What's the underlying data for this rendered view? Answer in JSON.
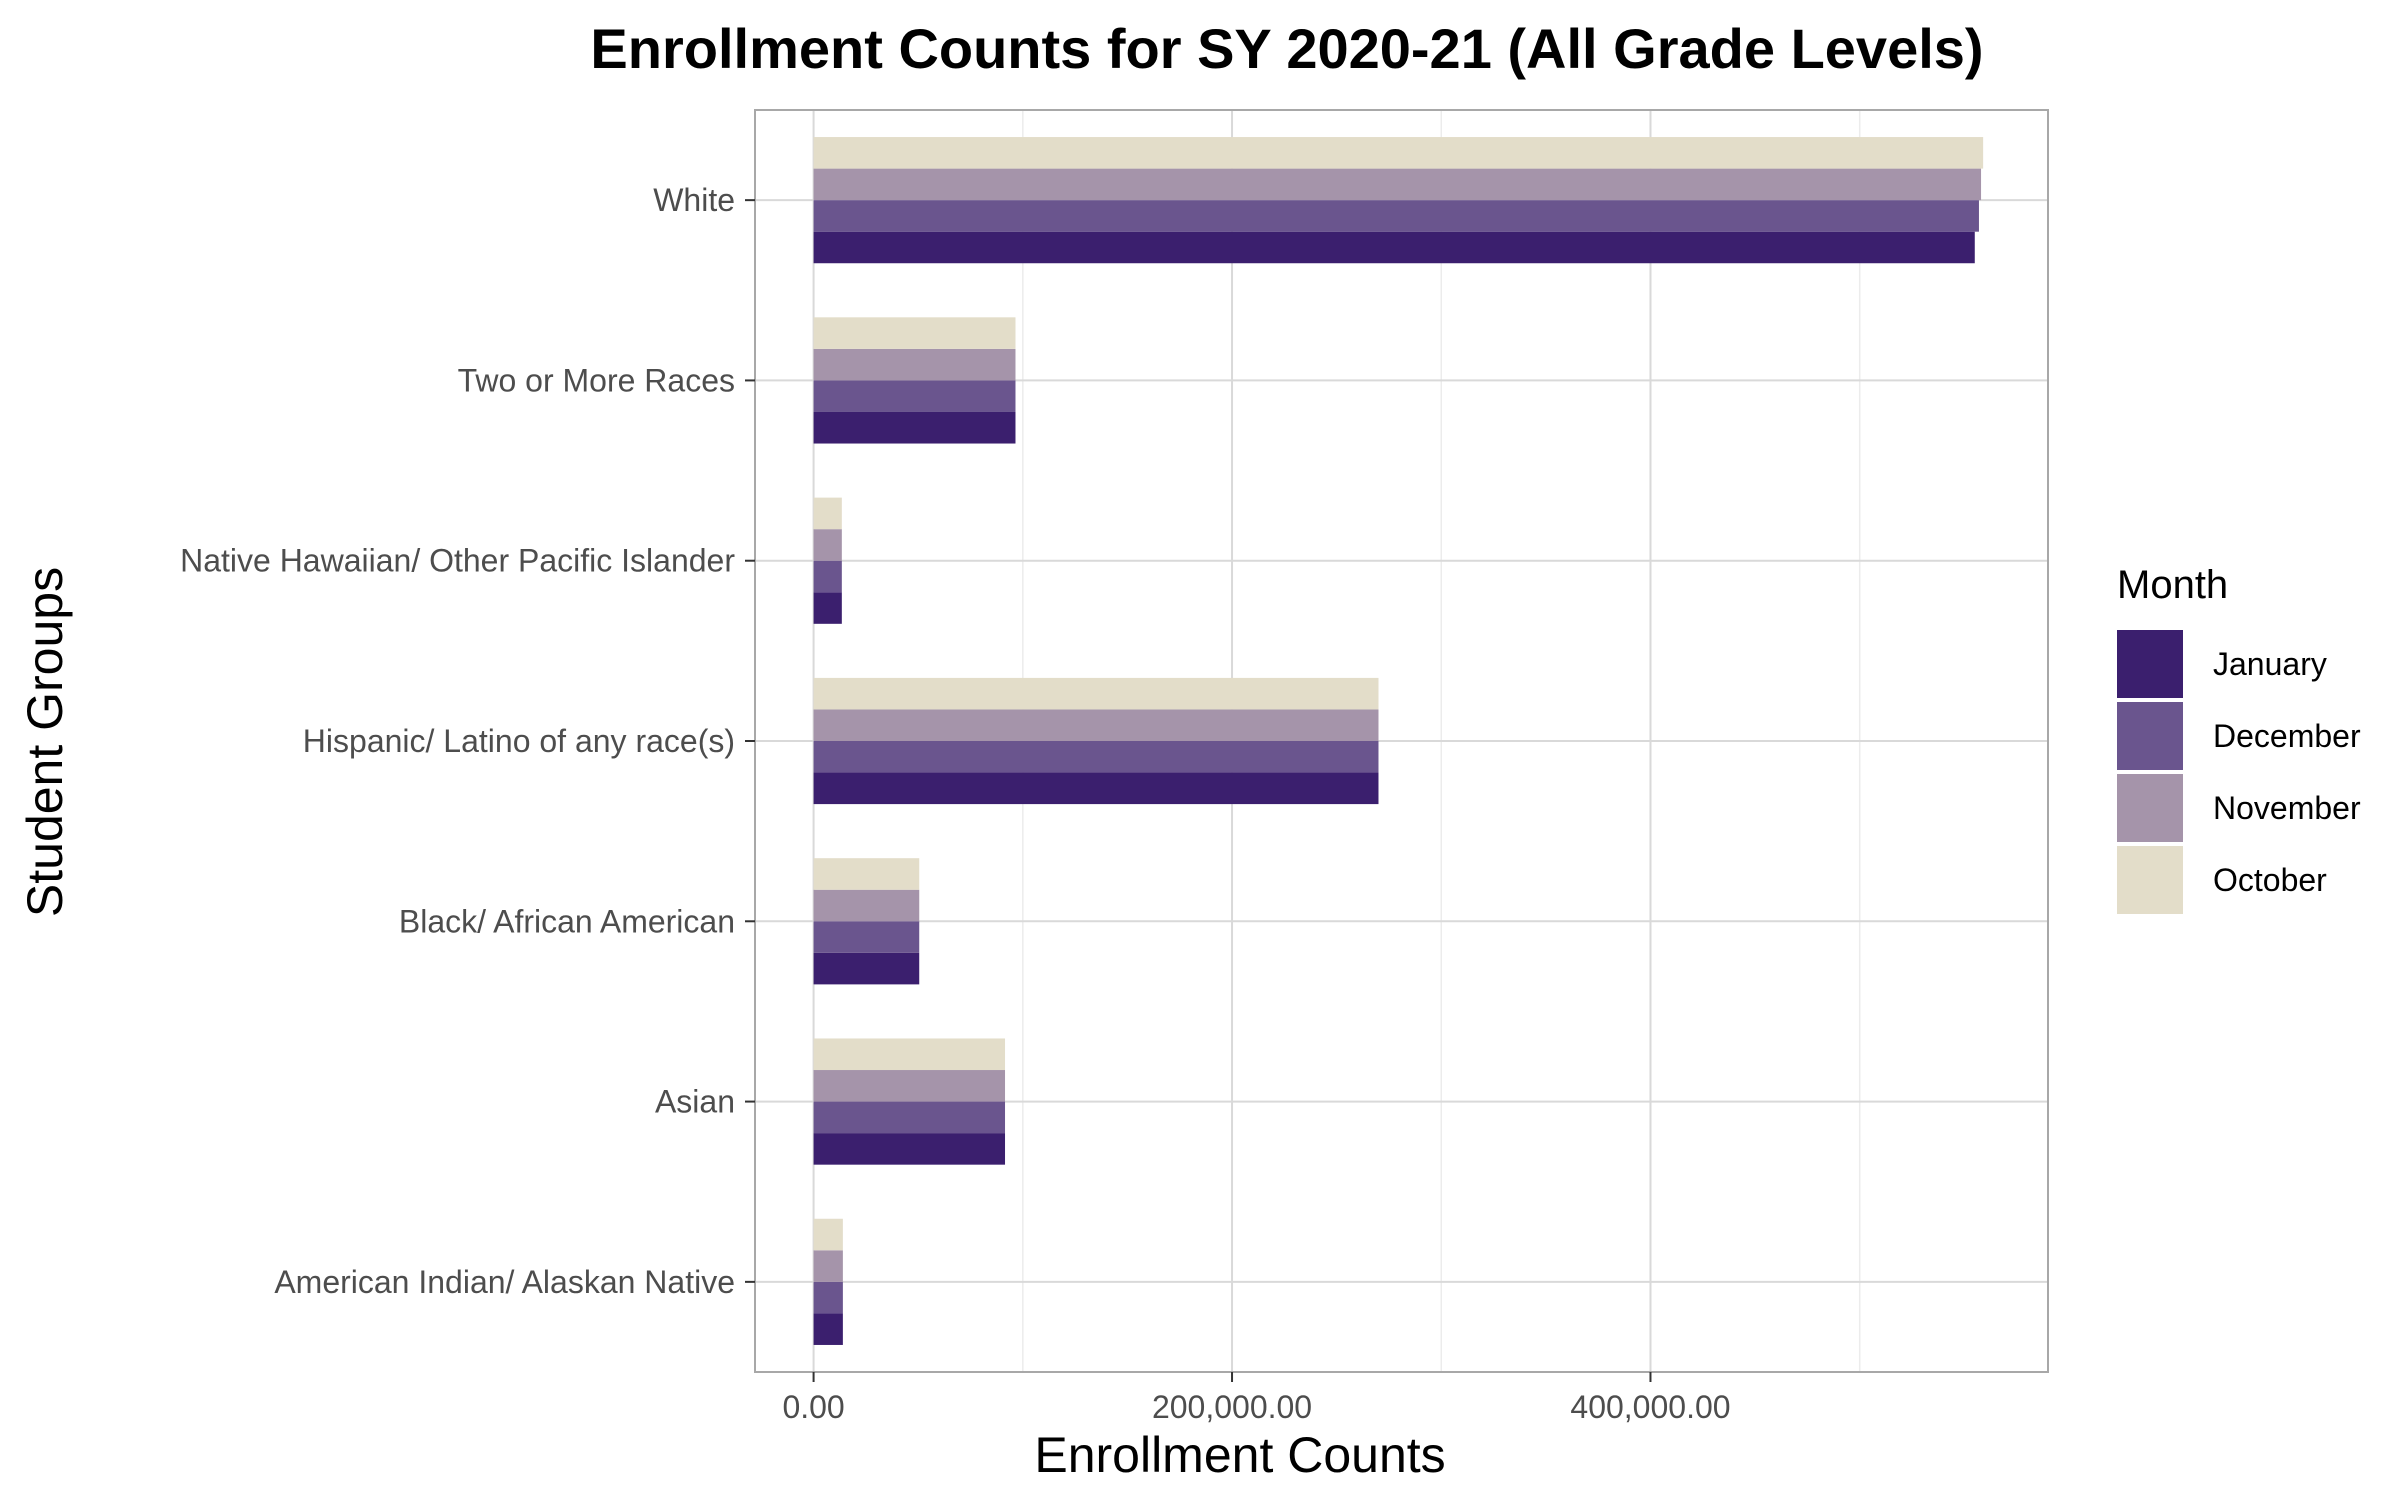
{
  "chart_data": {
    "type": "bar",
    "orientation": "horizontal",
    "title": "Enrollment Counts for SY 2020-21 (All Grade Levels)",
    "xlabel": "Enrollment Counts",
    "ylabel": "Student Groups",
    "xlim": [
      -28000,
      590000
    ],
    "x_ticks": [
      0,
      200000,
      400000
    ],
    "x_tick_labels": [
      "0.00",
      "200,000.00",
      "400,000.00"
    ],
    "grid": true,
    "legend_position": "right",
    "legend_title": "Month",
    "categories": [
      "White",
      "Two or More Races",
      "Native Hawaiian/ Other Pacific Islander",
      "Hispanic/ Latino of any race(s)",
      "Black/ African American",
      "Asian",
      "American Indian/ Alaskan Native"
    ],
    "series": [
      {
        "name": "January",
        "color": "#3b1f6e",
        "values": [
          555000,
          96500,
          13500,
          270000,
          50500,
          91500,
          14000
        ]
      },
      {
        "name": "December",
        "color": "#6a558e",
        "values": [
          557000,
          96500,
          13500,
          270000,
          50500,
          91500,
          14000
        ]
      },
      {
        "name": "November",
        "color": "#a594aa",
        "values": [
          558000,
          96500,
          13500,
          270000,
          50500,
          91500,
          14000
        ]
      },
      {
        "name": "October",
        "color": "#e3ddc9",
        "values": [
          559000,
          96500,
          13500,
          270000,
          50500,
          91500,
          14000
        ]
      }
    ]
  }
}
